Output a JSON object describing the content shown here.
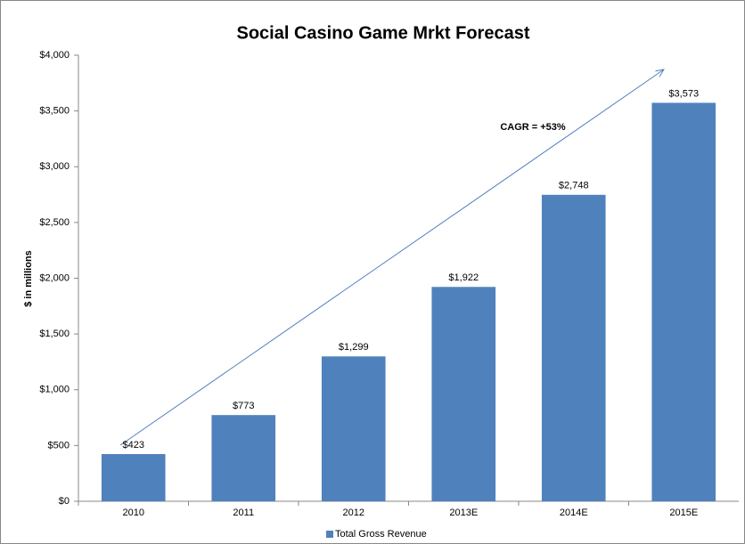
{
  "chart_data": {
    "type": "bar",
    "title": "Social Casino Game Mrkt Forecast",
    "y_label": "$ in millions",
    "categories": [
      "2010",
      "2011",
      "2012",
      "2013E",
      "2014E",
      "2015E"
    ],
    "series": [
      {
        "name": "Total Gross Revenue",
        "color": "#4f81bd",
        "values": [
          423,
          773,
          1299,
          1922,
          2748,
          3573
        ],
        "value_labels": [
          "$423",
          "$773",
          "$1,299",
          "$1,922",
          "$2,748",
          "$3,573"
        ]
      }
    ],
    "ylim": [
      0,
      4000
    ],
    "yticks": [
      {
        "value": 0,
        "label": "$0"
      },
      {
        "value": 500,
        "label": "$500"
      },
      {
        "value": 1000,
        "label": "$1,000"
      },
      {
        "value": 1500,
        "label": "$1,500"
      },
      {
        "value": 2000,
        "label": "$2,000"
      },
      {
        "value": 2500,
        "label": "$2,500"
      },
      {
        "value": 3000,
        "label": "$3,000"
      },
      {
        "value": 3500,
        "label": "$3,500"
      },
      {
        "value": 4000,
        "label": "$4,000"
      }
    ],
    "annotation": "CAGR = +53%",
    "grid": false,
    "legend": "bottom"
  }
}
